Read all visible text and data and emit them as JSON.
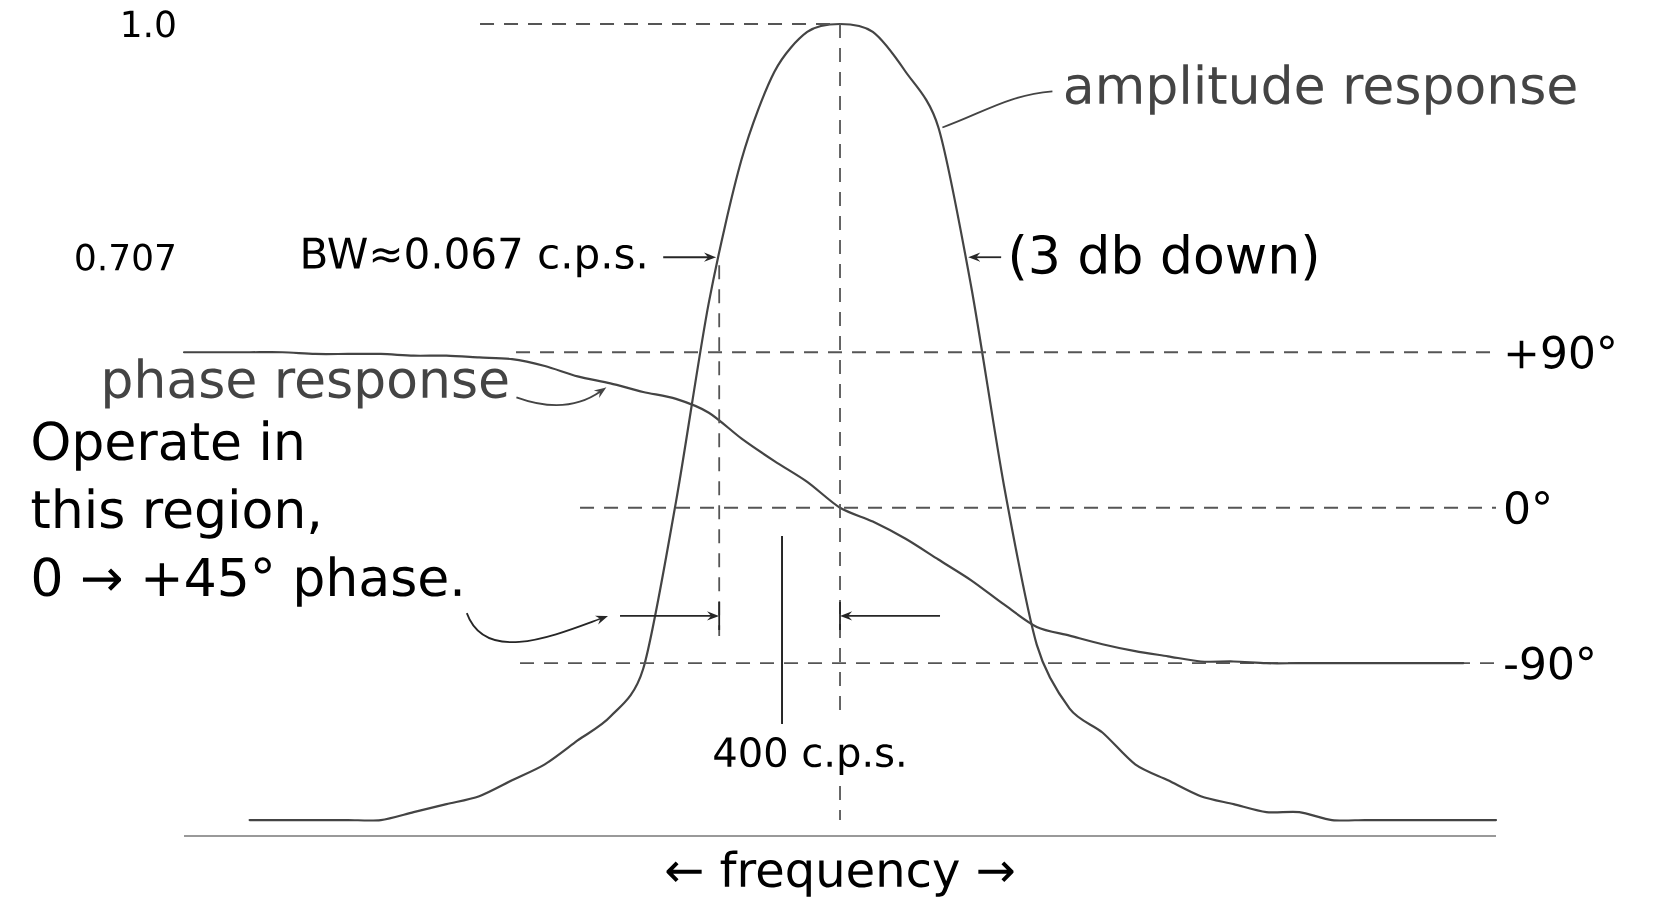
{
  "chart_data": {
    "type": "line",
    "xlabel": "← frequency →",
    "categories": [
      null,
      null,
      null,
      null,
      null,
      null,
      null,
      null,
      null,
      null,
      null,
      null,
      null,
      null,
      null,
      null,
      null,
      null,
      null,
      null,
      null,
      null,
      null,
      null,
      null,
      null,
      null,
      null,
      null,
      null,
      null,
      null,
      null,
      null,
      null,
      null,
      null,
      null,
      null,
      null,
      null
    ],
    "series": [
      {
        "name": "amplitude response",
        "color": "#444444",
        "values": [
          null,
          null,
          0.0,
          0.0,
          0.0,
          0.0,
          0.0,
          0.01,
          0.02,
          0.03,
          0.05,
          0.07,
          0.1,
          0.13,
          0.19,
          0.4,
          0.65,
          0.83,
          0.94,
          0.99,
          1.0,
          0.99,
          0.94,
          0.87,
          0.67,
          0.42,
          0.22,
          0.14,
          0.11,
          0.07,
          0.05,
          0.03,
          0.02,
          0.01,
          0.01,
          0.0,
          0.0,
          0.0,
          0.0,
          0.0,
          0.0
        ]
      },
      {
        "name": "phase response",
        "color": "#444444",
        "axis": "y2",
        "values": [
          90,
          90,
          90,
          90,
          89,
          89,
          89,
          88,
          88,
          87,
          86,
          82,
          76,
          72,
          67,
          63,
          55,
          40,
          27,
          15,
          0,
          -8,
          -18,
          -30,
          -42,
          -56,
          -69,
          -74,
          -79,
          -83,
          -86,
          -89,
          -89,
          -90,
          -90,
          -90,
          -90,
          -90,
          -90,
          -90,
          null
        ]
      }
    ],
    "ylim": [
      -0.02,
      1.0
    ],
    "yticks": [
      {
        "value": 1.0,
        "label": "1.0"
      },
      0.707
    ],
    "y2lim": [
      -190,
      280
    ],
    "y2ticks": [
      {
        "value": 90,
        "label": "+90°"
      },
      {
        "value": 0,
        "label": "0°"
      },
      {
        "value": -90,
        "label": "-90°"
      }
    ],
    "marker": "none",
    "line_style": "solid",
    "ref_lines": [
      {
        "axis": "y2",
        "value": 90,
        "line_style": "dashed"
      },
      {
        "axis": "y2",
        "value": 0,
        "line_style": "dashed"
      },
      {
        "axis": "y2",
        "value": -90,
        "line_style": "dashed"
      }
    ],
    "annotations": [
      "BW≈0.067 c.p.s.",
      "(3 db down)",
      "Operate in this region, 0 → +45° phase.",
      "400 c.p.s."
    ]
  }
}
